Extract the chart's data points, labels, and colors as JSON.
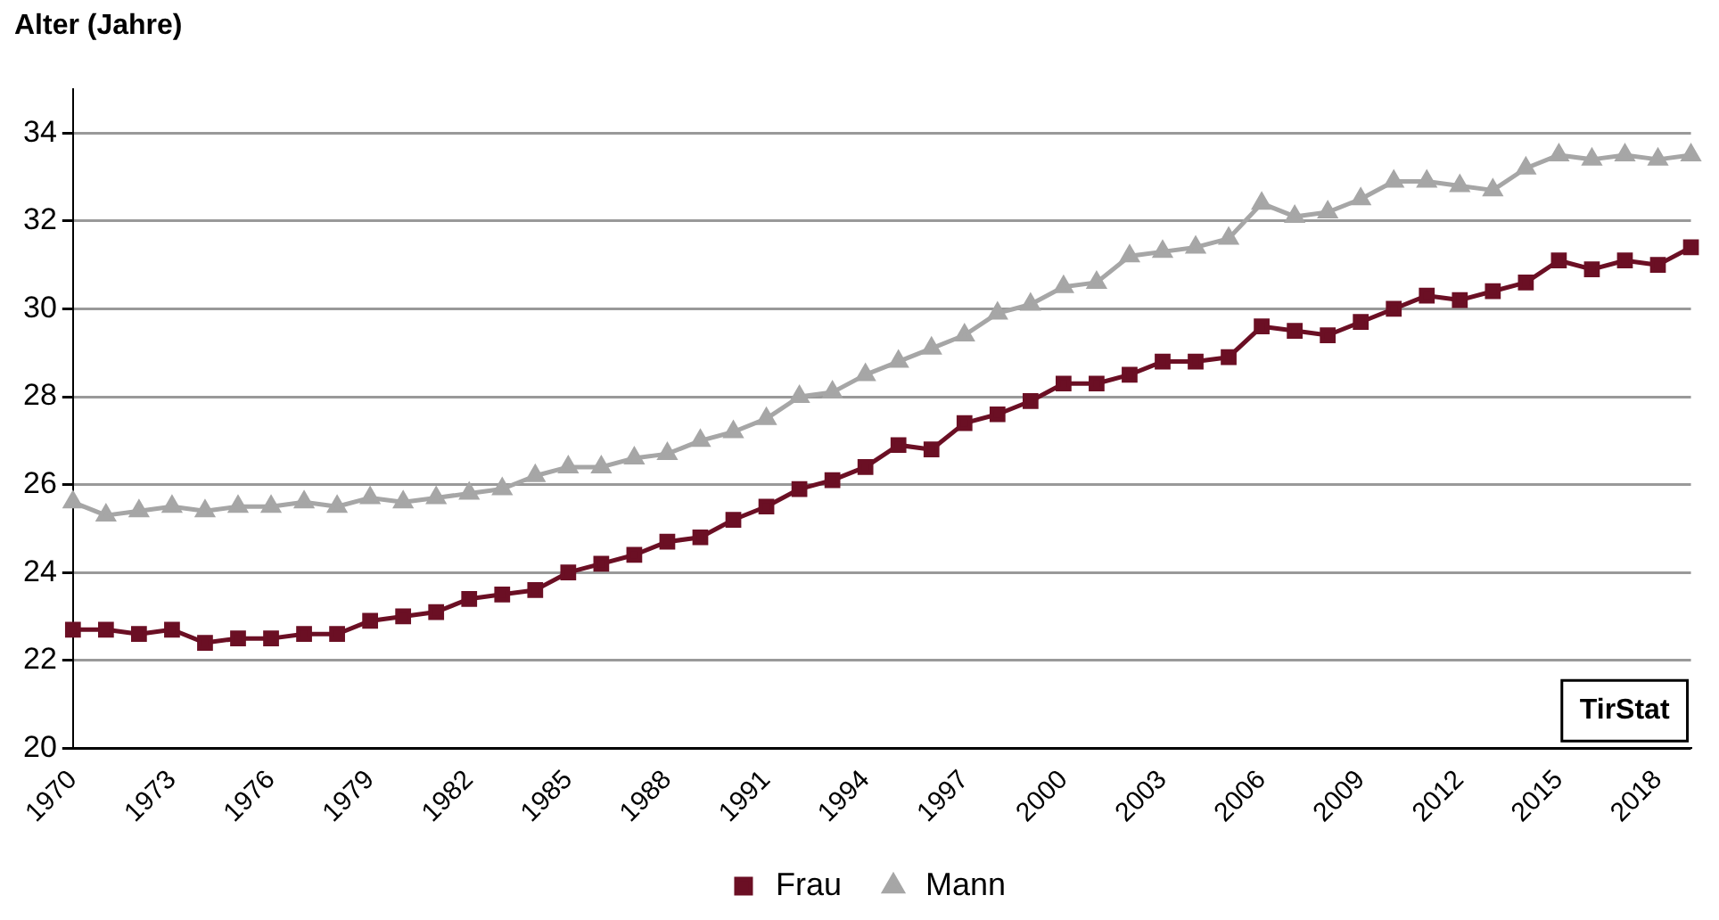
{
  "chart_data": {
    "type": "line",
    "ylabel": "Alter (Jahre)",
    "annotations": [
      "TirStat"
    ],
    "categories": [
      "1970",
      null,
      null,
      "1973",
      null,
      null,
      "1976",
      null,
      null,
      "1979",
      null,
      null,
      "1982",
      null,
      null,
      "1985",
      null,
      null,
      "1988",
      null,
      null,
      "1991",
      null,
      null,
      "1994",
      null,
      null,
      "1997",
      null,
      null,
      "2000",
      null,
      null,
      "2003",
      null,
      null,
      "2006",
      null,
      null,
      "2009",
      null,
      null,
      "2012",
      null,
      null,
      "2015",
      null,
      null,
      "2018",
      null
    ],
    "series": [
      {
        "name": "Frau",
        "color": "#6b0f24",
        "marker": "square",
        "values": [
          22.7,
          22.7,
          22.6,
          22.7,
          22.4,
          22.5,
          22.5,
          22.6,
          22.6,
          22.9,
          23.0,
          23.1,
          23.4,
          23.5,
          23.6,
          24.0,
          24.2,
          24.4,
          24.7,
          24.8,
          25.2,
          25.5,
          25.9,
          26.1,
          26.4,
          26.9,
          26.8,
          27.4,
          27.6,
          27.9,
          28.3,
          28.3,
          28.5,
          28.8,
          28.8,
          28.9,
          29.6,
          29.5,
          29.4,
          29.7,
          30.0,
          30.3,
          30.2,
          30.4,
          30.6,
          31.1,
          30.9,
          31.1,
          31.0,
          31.4
        ]
      },
      {
        "name": "Mann",
        "color": "#a6a6a6",
        "marker": "triangle",
        "values": [
          25.6,
          25.3,
          25.4,
          25.5,
          25.4,
          25.5,
          25.5,
          25.6,
          25.5,
          25.7,
          25.6,
          25.7,
          25.8,
          25.9,
          26.2,
          26.4,
          26.4,
          26.6,
          26.7,
          27.0,
          27.2,
          27.5,
          28.0,
          28.1,
          28.5,
          28.8,
          29.1,
          29.4,
          29.9,
          30.1,
          30.5,
          30.6,
          31.2,
          31.3,
          31.4,
          31.6,
          32.4,
          32.1,
          32.2,
          32.5,
          32.9,
          32.9,
          32.8,
          32.7,
          33.2,
          33.5,
          33.4,
          33.5,
          33.4,
          33.5
        ]
      }
    ],
    "ylim": [
      20,
      35
    ],
    "yticks": [
      20,
      22,
      24,
      26,
      28,
      30,
      32,
      34
    ],
    "grid": "y",
    "legend": "bottom",
    "line_style": "solid"
  }
}
